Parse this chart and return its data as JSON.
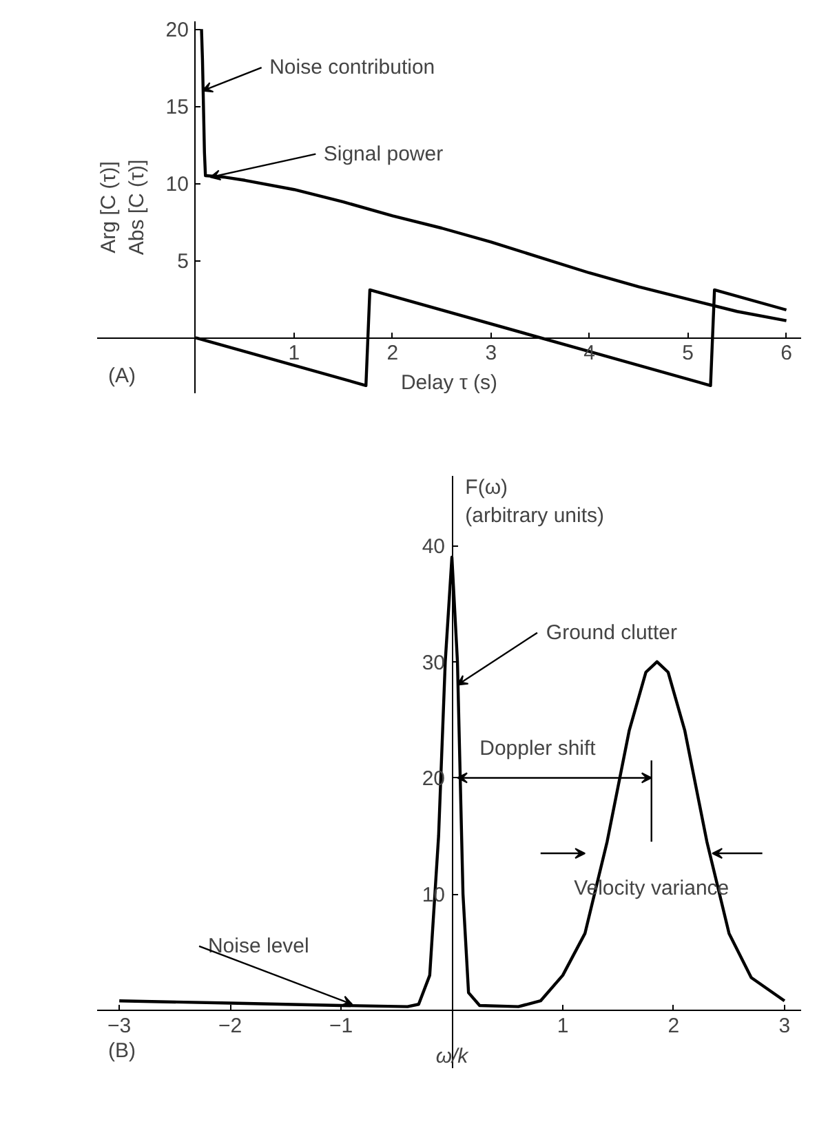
{
  "chart_data": [
    {
      "type": "line",
      "xlabel": "Delay τ (s)",
      "ylabel": "Arg [C (τ)]\nAbs [C (τ)]",
      "annotations": [
        {
          "text": "Noise contribution",
          "x": 0.07,
          "y": 16
        },
        {
          "text": "Signal power",
          "x": 0.15,
          "y": 10.4
        },
        "(A)"
      ],
      "series": [
        {
          "color": "#000000",
          "x": [
            0.06,
            0.07,
            0.08,
            0.09,
            0.1,
            0.3,
            0.5,
            1,
            1.5,
            2,
            2.5,
            3,
            3.5,
            4,
            4.5,
            5,
            5.5,
            6
          ],
          "values": [
            20,
            18,
            15,
            12,
            10.5,
            10.4,
            10.2,
            9.6,
            8.8,
            7.9,
            7.1,
            6.2,
            5.2,
            4.2,
            3.3,
            2.5,
            1.7,
            1.1
          ]
        },
        {
          "color": "#000000",
          "x": [
            0,
            1.73,
            1.77,
            5.23,
            5.27,
            6
          ],
          "values": [
            0,
            -3.1,
            3.1,
            -3.1,
            3.1,
            1.8
          ]
        }
      ],
      "xlim": [
        -1.0,
        6.15
      ],
      "ylim": [
        -3.6,
        20.5
      ],
      "xticks": [
        1,
        2,
        3,
        4,
        5,
        6
      ],
      "yticks": [
        5,
        10,
        15,
        20
      ]
    },
    {
      "type": "line",
      "xlabel": "ω/k",
      "ylabel": "F(ω)\n(arbitrary units)",
      "annotations": [
        {
          "text": "Ground clutter",
          "x": 0.05,
          "y": 28
        },
        "Doppler shift",
        "Velocity variance",
        {
          "text": "Noise level",
          "x": -0.9,
          "y": 0.5
        },
        "(B)"
      ],
      "series": [
        {
          "color": "#000000",
          "x": [
            -3,
            -2,
            -1,
            -0.4,
            -0.3,
            -0.2,
            -0.12,
            -0.06,
            0,
            0.05,
            0.1,
            0.15,
            0.25,
            0.6,
            0.8,
            1.0,
            1.2,
            1.4,
            1.6,
            1.75,
            1.85,
            1.95,
            2.1,
            2.3,
            2.5,
            2.7,
            3.0
          ],
          "values": [
            0.8,
            0.6,
            0.4,
            0.3,
            0.5,
            3,
            15,
            30,
            39,
            30,
            10,
            1.5,
            0.4,
            0.3,
            0.8,
            3,
            6.6,
            14.5,
            24.1,
            29.1,
            30,
            29.1,
            24.1,
            14.5,
            6.6,
            2.8,
            0.8
          ]
        }
      ],
      "ref_lines": [
        {
          "axis": "x",
          "value": 1.8
        }
      ],
      "xlim": [
        -3.2,
        3.15
      ],
      "ylim": [
        -5,
        46
      ],
      "xticks": [
        -3,
        -2,
        -1,
        1,
        2,
        3
      ],
      "yticks": [
        10,
        20,
        30,
        40
      ]
    }
  ]
}
